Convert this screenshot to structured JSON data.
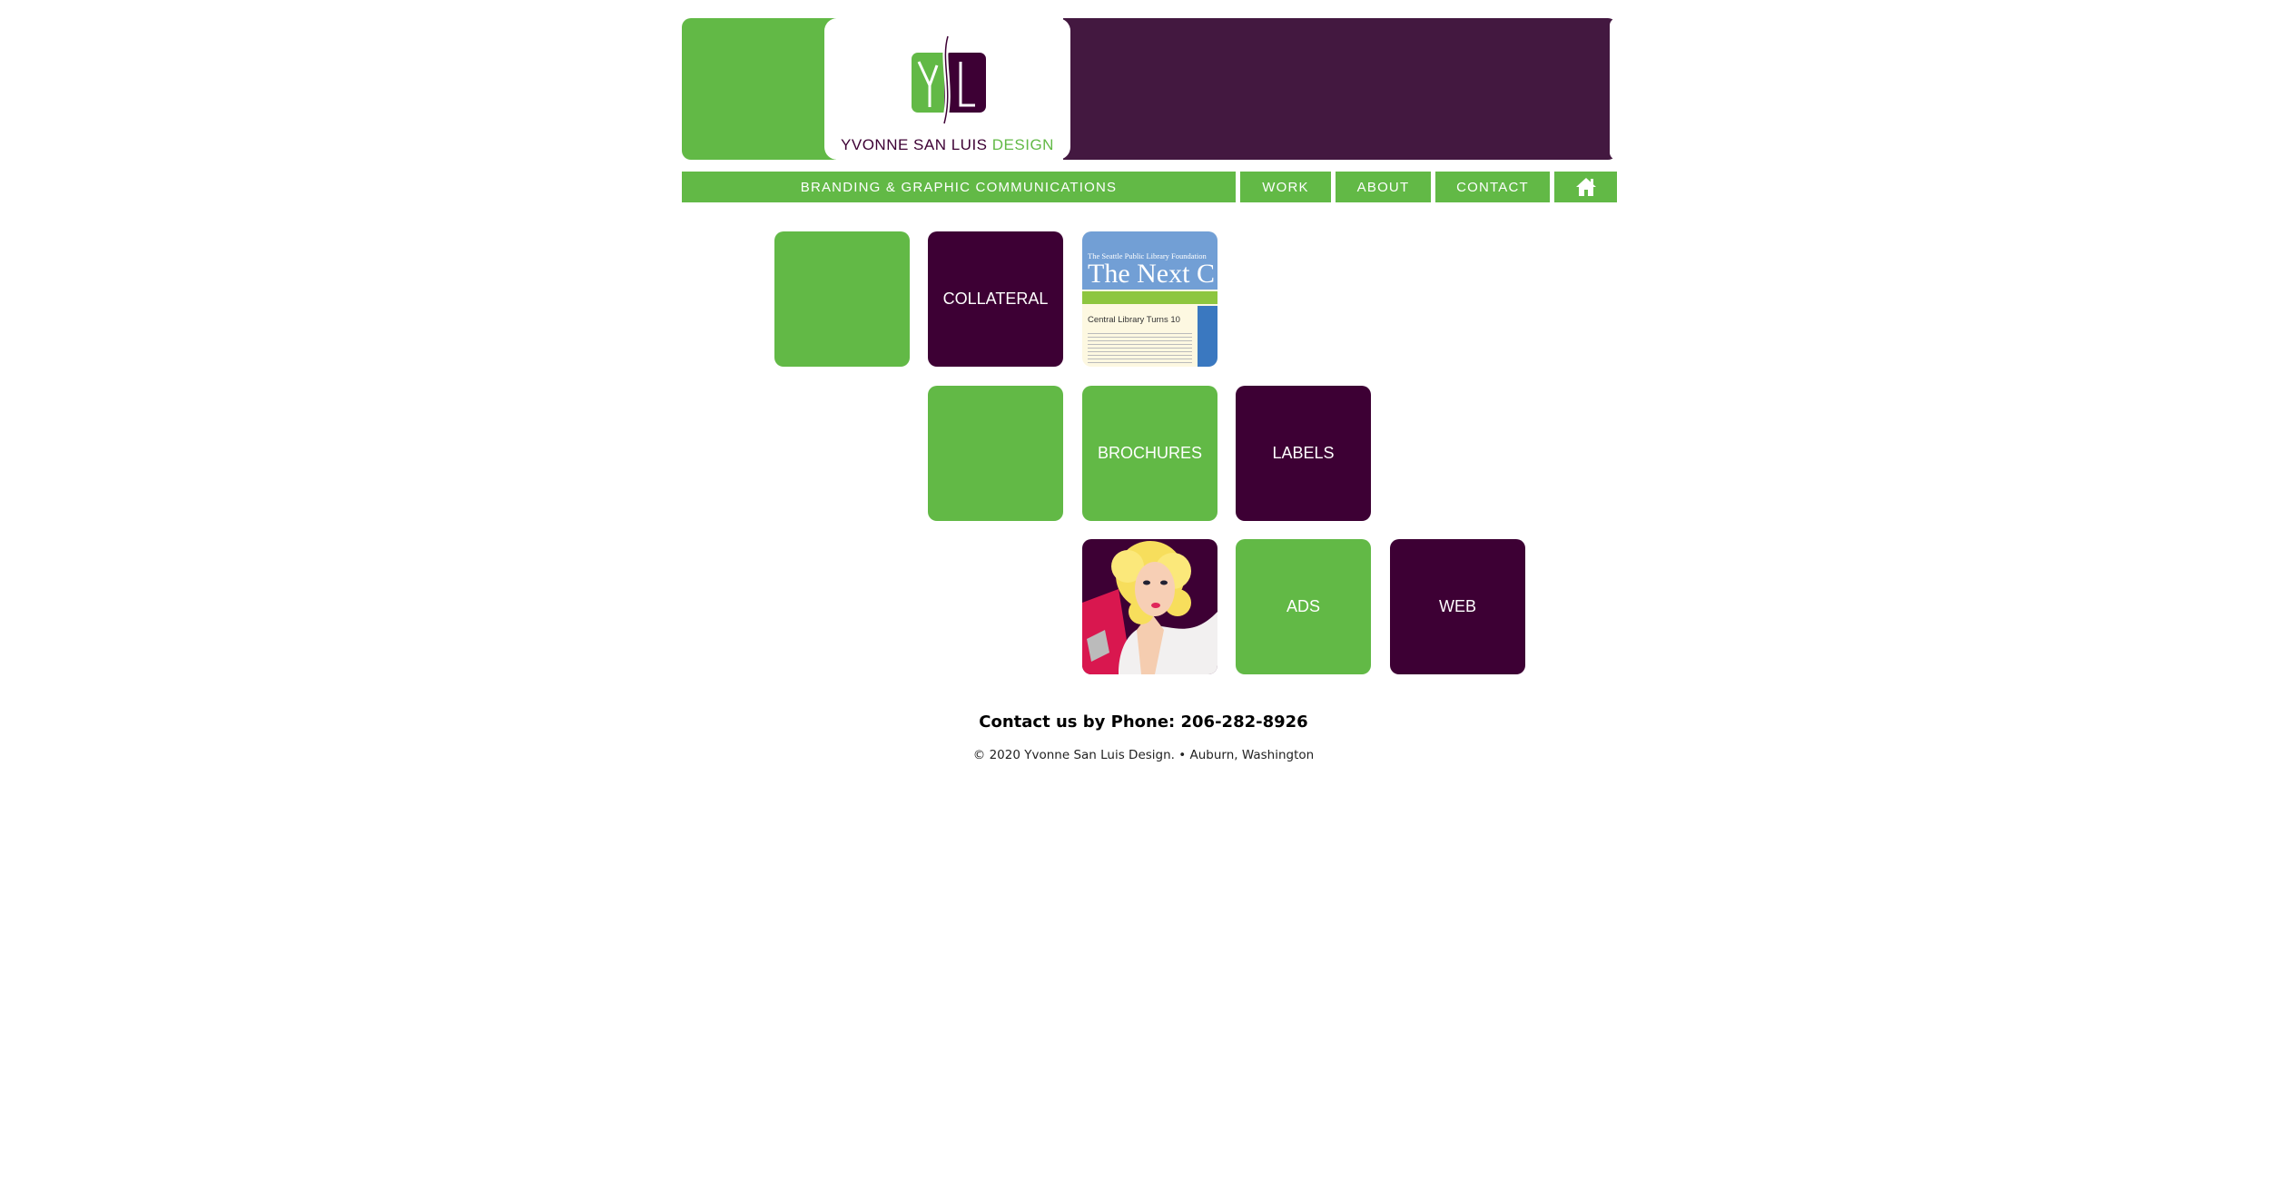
{
  "brand": {
    "name_part1": "YVONNE SAN LUIS",
    "name_part2": "DESIGN",
    "logo_letters": "YSL",
    "green": "#62b946",
    "purple": "#3d0034",
    "header_purple": "#431840"
  },
  "nav": {
    "tagline": "BRANDING & GRAPHIC COMMUNICATIONS",
    "items": [
      {
        "label": "WORK"
      },
      {
        "label": "ABOUT"
      },
      {
        "label": "CONTACT"
      }
    ],
    "home_icon": "home-icon"
  },
  "tiles": [
    {
      "label": "",
      "color": "green"
    },
    {
      "label": "COLLATERAL",
      "color": "purple"
    },
    {
      "label": "",
      "image": "newsletter",
      "img_text": {
        "org": "The Seattle Public Library Foundation",
        "title": "The Next C",
        "headline": "Central Library Turns 10"
      }
    },
    {
      "label": "",
      "color": "green"
    },
    {
      "label": "BROCHURES",
      "color": "green"
    },
    {
      "label": "LABELS",
      "color": "purple"
    },
    {
      "label": "",
      "image": "illustration-blonde-woman"
    },
    {
      "label": "ADS",
      "color": "green"
    },
    {
      "label": "WEB",
      "color": "purple"
    }
  ],
  "footer": {
    "phone": "Contact us by Phone: 206-282-8926",
    "copyright": "© 2020 Yvonne San Luis Design. • Auburn, Washington"
  }
}
